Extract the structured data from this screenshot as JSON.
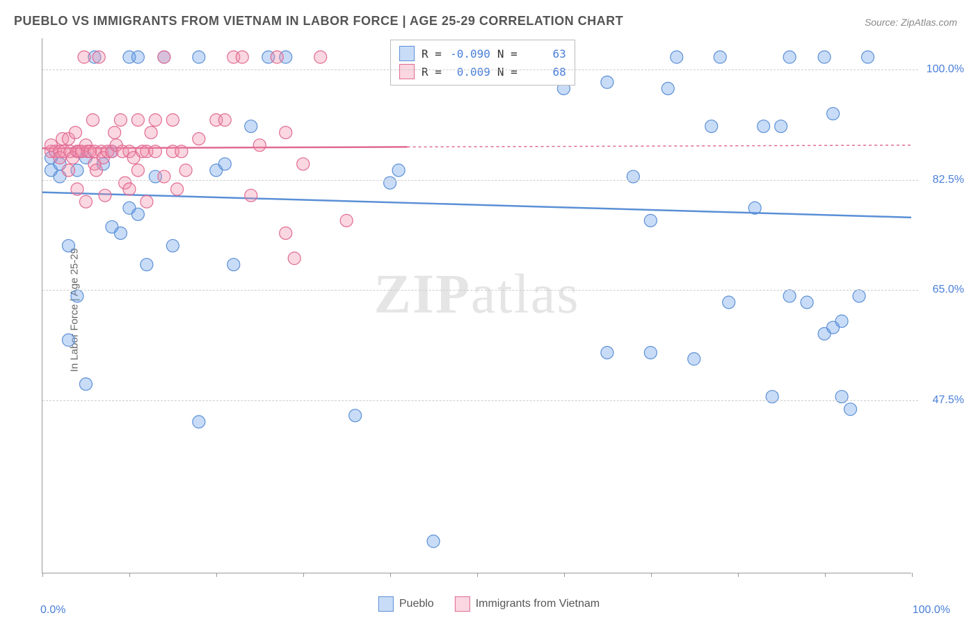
{
  "title": "PUEBLO VS IMMIGRANTS FROM VIETNAM IN LABOR FORCE | AGE 25-29 CORRELATION CHART",
  "source": "Source: ZipAtlas.com",
  "ylabel": "In Labor Force | Age 25-29",
  "watermark_a": "ZIP",
  "watermark_b": "atlas",
  "chart": {
    "type": "scatter",
    "background_color": "#ffffff",
    "grid_color": "#cccccc",
    "axis_color": "#999999",
    "text_color": "#666666",
    "value_color": "#4a7fd8",
    "xlim": [
      0,
      100
    ],
    "ylim": [
      20,
      105
    ],
    "ytick_values": [
      47.5,
      65.0,
      82.5,
      100.0
    ],
    "ytick_labels": [
      "47.5%",
      "65.0%",
      "82.5%",
      "100.0%"
    ],
    "xtick_values": [
      0,
      10,
      20,
      30,
      40,
      50,
      60,
      70,
      80,
      90,
      100
    ],
    "x_min_label": "0.0%",
    "x_max_label": "100.0%",
    "marker_radius": 9,
    "marker_stroke_width": 1.2,
    "marker_fill_opacity": 0.25,
    "series": [
      {
        "name": "Pueblo",
        "color_fill": "rgba(99,155,233,0.35)",
        "color_stroke": "#5a8fd6",
        "R": "-0.090",
        "N": "63",
        "trend": {
          "y_start": 80.5,
          "y_end": 76.5,
          "dash_from_x": 100
        },
        "points": [
          [
            1,
            86
          ],
          [
            1,
            84
          ],
          [
            2,
            85
          ],
          [
            2,
            83
          ],
          [
            3,
            72
          ],
          [
            3,
            57
          ],
          [
            4,
            84
          ],
          [
            4,
            64
          ],
          [
            5,
            50
          ],
          [
            5,
            86
          ],
          [
            6,
            102
          ],
          [
            7,
            85
          ],
          [
            8,
            75
          ],
          [
            8,
            87
          ],
          [
            9,
            74
          ],
          [
            10,
            102
          ],
          [
            10,
            78
          ],
          [
            11,
            77
          ],
          [
            11,
            102
          ],
          [
            12,
            69
          ],
          [
            13,
            83
          ],
          [
            14,
            102
          ],
          [
            15,
            72
          ],
          [
            18,
            102
          ],
          [
            18,
            44
          ],
          [
            20,
            84
          ],
          [
            21,
            85
          ],
          [
            22,
            69
          ],
          [
            24,
            91
          ],
          [
            26,
            102
          ],
          [
            28,
            102
          ],
          [
            36,
            45
          ],
          [
            40,
            82
          ],
          [
            41,
            84
          ],
          [
            45,
            25
          ],
          [
            60,
            97
          ],
          [
            65,
            55
          ],
          [
            65,
            98
          ],
          [
            68,
            83
          ],
          [
            70,
            55
          ],
          [
            70,
            76
          ],
          [
            72,
            97
          ],
          [
            73,
            102
          ],
          [
            75,
            54
          ],
          [
            77,
            91
          ],
          [
            78,
            102
          ],
          [
            79,
            63
          ],
          [
            82,
            78
          ],
          [
            83,
            91
          ],
          [
            84,
            48
          ],
          [
            85,
            91
          ],
          [
            86,
            64
          ],
          [
            86,
            102
          ],
          [
            88,
            63
          ],
          [
            90,
            58
          ],
          [
            90,
            102
          ],
          [
            91,
            59
          ],
          [
            91,
            93
          ],
          [
            92,
            60
          ],
          [
            92,
            48
          ],
          [
            93,
            46
          ],
          [
            94,
            64
          ],
          [
            95,
            102
          ]
        ]
      },
      {
        "name": "Immigrants from Vietnam",
        "color_fill": "rgba(240,140,170,0.35)",
        "color_stroke": "#e06a92",
        "R": "0.009",
        "N": "68",
        "trend": {
          "y_start": 87.5,
          "y_end": 88.0,
          "dash_from_x": 42
        },
        "points": [
          [
            1,
            87
          ],
          [
            1,
            88
          ],
          [
            1.5,
            87
          ],
          [
            2,
            87
          ],
          [
            2,
            86
          ],
          [
            2.3,
            89
          ],
          [
            2.5,
            87
          ],
          [
            3,
            89
          ],
          [
            3,
            84
          ],
          [
            3.2,
            87
          ],
          [
            3.5,
            86
          ],
          [
            3.8,
            90
          ],
          [
            4,
            87
          ],
          [
            4,
            81
          ],
          [
            4.2,
            87
          ],
          [
            4.5,
            87
          ],
          [
            4.8,
            102
          ],
          [
            5,
            88
          ],
          [
            5,
            79
          ],
          [
            5.2,
            87
          ],
          [
            5.5,
            87
          ],
          [
            5.8,
            92
          ],
          [
            6,
            87
          ],
          [
            6,
            85
          ],
          [
            6.2,
            84
          ],
          [
            6.5,
            102
          ],
          [
            6.8,
            87
          ],
          [
            7,
            86
          ],
          [
            7.2,
            80
          ],
          [
            7.5,
            87
          ],
          [
            8,
            87
          ],
          [
            8.3,
            90
          ],
          [
            8.5,
            88
          ],
          [
            9,
            92
          ],
          [
            9.2,
            87
          ],
          [
            9.5,
            82
          ],
          [
            10,
            87
          ],
          [
            10,
            81
          ],
          [
            10.5,
            86
          ],
          [
            11,
            92
          ],
          [
            11,
            84
          ],
          [
            11.5,
            87
          ],
          [
            12,
            79
          ],
          [
            12,
            87
          ],
          [
            12.5,
            90
          ],
          [
            13,
            87
          ],
          [
            13,
            92
          ],
          [
            14,
            83
          ],
          [
            14,
            102
          ],
          [
            15,
            92
          ],
          [
            15,
            87
          ],
          [
            15.5,
            81
          ],
          [
            16,
            87
          ],
          [
            16.5,
            84
          ],
          [
            18,
            89
          ],
          [
            20,
            92
          ],
          [
            21,
            92
          ],
          [
            22,
            102
          ],
          [
            23,
            102
          ],
          [
            24,
            80
          ],
          [
            25,
            88
          ],
          [
            27,
            102
          ],
          [
            28,
            90
          ],
          [
            28,
            74
          ],
          [
            29,
            70
          ],
          [
            30,
            85
          ],
          [
            32,
            102
          ],
          [
            35,
            76
          ]
        ]
      }
    ]
  },
  "stats_legend": {
    "r_label": "R =",
    "n_label": "N ="
  },
  "bottom_legend": {
    "items": [
      "Pueblo",
      "Immigrants from Vietnam"
    ]
  }
}
